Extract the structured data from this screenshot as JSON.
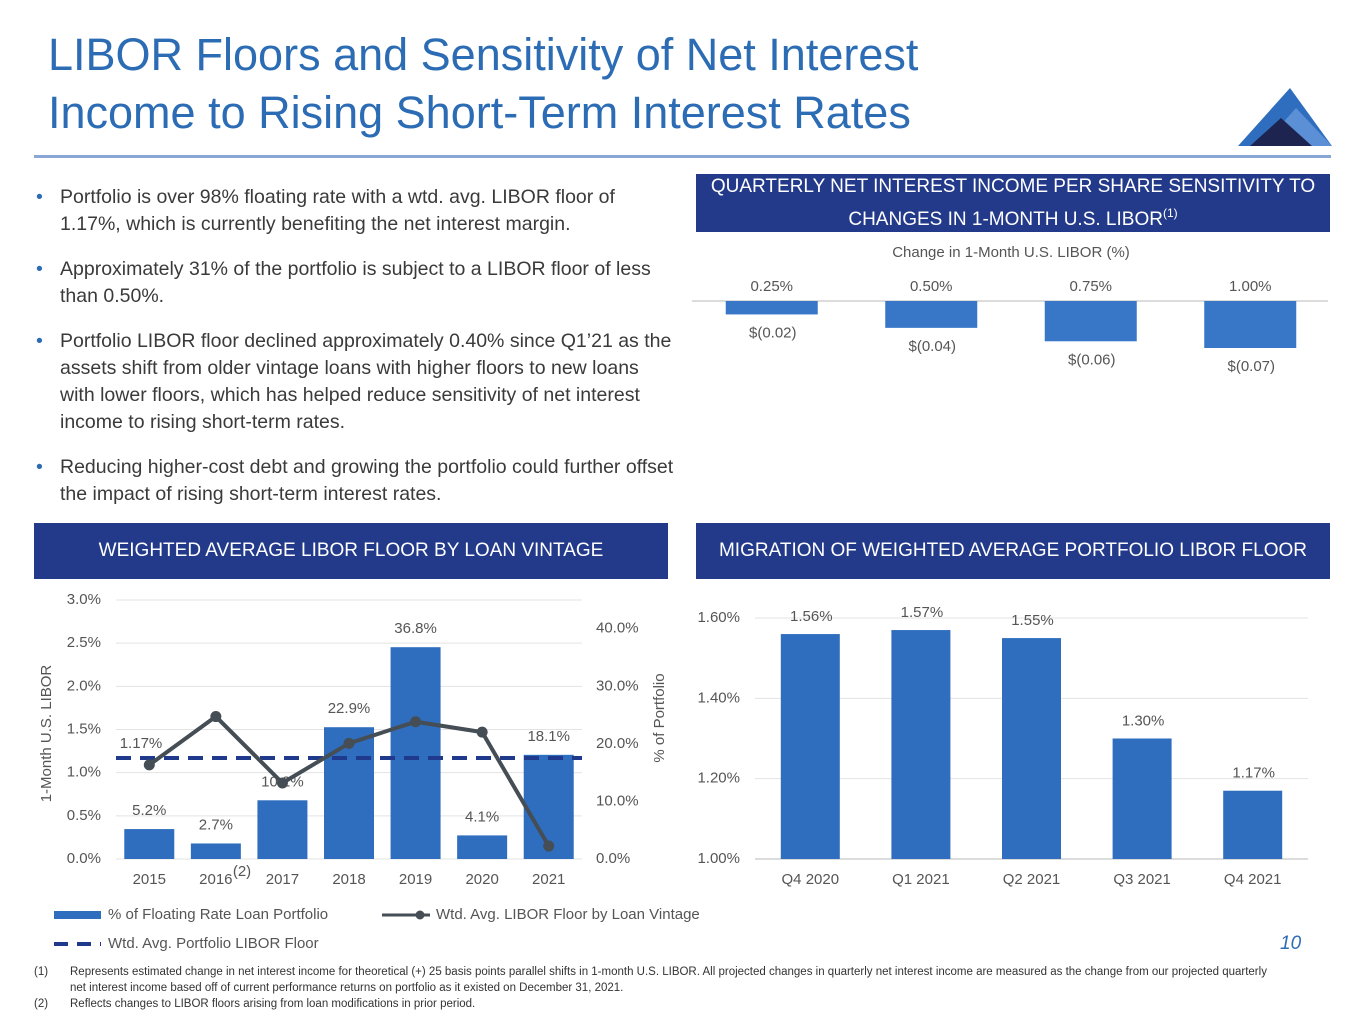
{
  "title": [
    "LIBOR Floors and Sensitivity of Net Interest",
    "Income to Rising Short-Term Interest Rates"
  ],
  "bullets": [
    "Portfolio is over 98% floating rate with a wtd. avg. LIBOR floor of 1.17%, which is currently benefiting the net interest margin.",
    "Approximately 31% of the portfolio is subject to a LIBOR floor of less than 0.50%.",
    "Portfolio LIBOR floor declined approximately 0.40% since Q1’21 as the assets shift from older vintage loans with higher floors to new loans with lower floors, which has helped reduce sensitivity of net interest income to rising short-term rates.",
    "Reducing higher-cost debt and growing the portfolio could further offset the impact of rising short-term interest rates."
  ],
  "chart_data": [
    {
      "type": "bar",
      "title": "QUARTERLY NET INTEREST INCOME PER SHARE SENSITIVITY TO CHANGES IN 1-MONTH U.S. LIBOR",
      "title_note": "(1)",
      "subtitle": "Change in 1-Month U.S. LIBOR (%)",
      "categories": [
        "0.25%",
        "0.50%",
        "0.75%",
        "1.00%"
      ],
      "values": [
        -0.02,
        -0.04,
        -0.06,
        -0.07
      ],
      "value_labels": [
        "$(0.02)",
        "$(0.04)",
        "$(0.06)",
        "$(0.07)"
      ],
      "color": "#3877c8"
    },
    {
      "type": "combo",
      "title": "WEIGHTED AVERAGE LIBOR FLOOR BY LOAN VINTAGE",
      "categories": [
        "2015",
        "2016",
        "2017",
        "2018",
        "2019",
        "2020",
        "2021"
      ],
      "category_notes": [
        null,
        "(2)",
        null,
        null,
        null,
        null,
        null
      ],
      "y_label": "1-Month U.S. LIBOR",
      "y2_label": "% of Portfolio",
      "ylim": [
        0,
        3.0
      ],
      "yticks": [
        {
          "value": 0,
          "label": "0.0%"
        },
        {
          "value": 0.5,
          "label": "0.5%"
        },
        {
          "value": 1.0,
          "label": "1.0%"
        },
        {
          "value": 1.5,
          "label": "1.5%"
        },
        {
          "value": 2.0,
          "label": "2.0%"
        },
        {
          "value": 2.5,
          "label": "2.5%"
        },
        {
          "value": 3.0,
          "label": "3.0%"
        }
      ],
      "y2lim": [
        0,
        45
      ],
      "y2ticks": [
        {
          "value": 0,
          "label": "0.0%"
        },
        {
          "value": 10,
          "label": "10.0%"
        },
        {
          "value": 20,
          "label": "20.0%"
        },
        {
          "value": 30,
          "label": "30.0%"
        },
        {
          "value": 40,
          "label": "40.0%"
        }
      ],
      "grid": true,
      "series": [
        {
          "name": "% of Floating Rate Loan Portfolio",
          "kind": "bar",
          "axis": "y2",
          "color": "#2f6ebf",
          "values": [
            5.2,
            2.7,
            10.2,
            22.9,
            36.8,
            4.1,
            18.1
          ],
          "value_labels": [
            "5.2%",
            "2.7%",
            "10.2%",
            "22.9%",
            "36.8%",
            "4.1%",
            "18.1%"
          ]
        },
        {
          "name": "Wtd. Avg. LIBOR Floor by Loan Vintage",
          "kind": "line",
          "axis": "y",
          "color": "#454d55",
          "values": [
            1.09,
            1.65,
            0.88,
            1.34,
            1.59,
            1.47,
            0.15
          ]
        }
      ],
      "reference_line": {
        "name": "Wtd. Avg. Portfolio LIBOR Floor",
        "value": 1.17,
        "value_label": "1.17%",
        "color": "#1f3a8c"
      }
    },
    {
      "type": "bar",
      "title": "MIGRATION OF WEIGHTED AVERAGE PORTFOLIO LIBOR FLOOR",
      "categories": [
        "Q4 2020",
        "Q1 2021",
        "Q2 2021",
        "Q3 2021",
        "Q4 2021"
      ],
      "values": [
        1.56,
        1.57,
        1.55,
        1.3,
        1.17
      ],
      "value_labels": [
        "1.56%",
        "1.57%",
        "1.55%",
        "1.30%",
        "1.17%"
      ],
      "ylim": [
        1.0,
        1.6
      ],
      "yticks": [
        {
          "value": 1.0,
          "label": "1.00%"
        },
        {
          "value": 1.2,
          "label": "1.20%"
        },
        {
          "value": 1.4,
          "label": "1.40%"
        },
        {
          "value": 1.6,
          "label": "1.60%"
        }
      ],
      "grid": true,
      "color": "#2f6ebf"
    }
  ],
  "page_number": "10",
  "footnotes": [
    {
      "marker": "(1)",
      "text": "Represents estimated change in net interest income for theoretical (+) 25 basis points parallel shifts in 1-month U.S. LIBOR. All projected changes in quarterly net interest income are measured as the change from our projected quarterly net interest income based off of current performance returns on portfolio as it existed on December 31, 2021."
    },
    {
      "marker": "(2)",
      "text": "Reflects changes to LIBOR floors arising from loan modifications in prior period."
    }
  ]
}
